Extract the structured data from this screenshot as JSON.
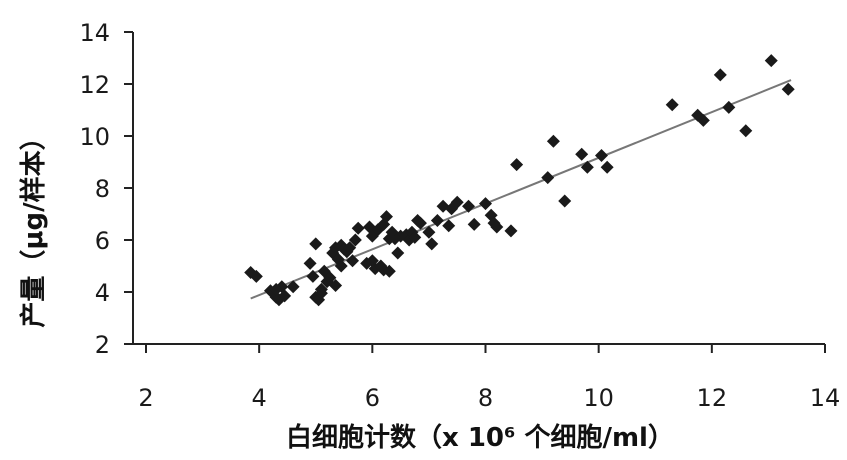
{
  "chart_data": {
    "type": "scatter",
    "title": "",
    "xlabel": "白细胞计数（x 10⁶ 个细胞/ml）",
    "ylabel": "产量（μg/样本）",
    "xlim": [
      2,
      14
    ],
    "ylim": [
      2,
      14
    ],
    "xticks": [
      "2",
      "4",
      "6",
      "8",
      "10",
      "12",
      "14"
    ],
    "yticks": [
      "2",
      "4",
      "6",
      "8",
      "10",
      "12",
      "14"
    ],
    "grid": false,
    "legend": "none",
    "marker_color": "#1a1a1a",
    "trendline_color": "#777777",
    "trendline": {
      "x": [
        3.85,
        13.4
      ],
      "y": [
        3.75,
        12.15
      ]
    },
    "points": [
      {
        "x": 3.85,
        "y": 4.75
      },
      {
        "x": 3.95,
        "y": 4.6
      },
      {
        "x": 4.2,
        "y": 4.05
      },
      {
        "x": 4.3,
        "y": 3.8
      },
      {
        "x": 4.35,
        "y": 3.7
      },
      {
        "x": 4.4,
        "y": 4.2
      },
      {
        "x": 4.45,
        "y": 3.85
      },
      {
        "x": 4.3,
        "y": 4.1
      },
      {
        "x": 4.6,
        "y": 4.2
      },
      {
        "x": 4.9,
        "y": 5.1
      },
      {
        "x": 4.95,
        "y": 4.6
      },
      {
        "x": 5.0,
        "y": 5.85
      },
      {
        "x": 5.0,
        "y": 3.8
      },
      {
        "x": 5.05,
        "y": 3.7
      },
      {
        "x": 5.1,
        "y": 3.95
      },
      {
        "x": 5.1,
        "y": 4.1
      },
      {
        "x": 5.15,
        "y": 4.8
      },
      {
        "x": 5.2,
        "y": 4.4
      },
      {
        "x": 5.25,
        "y": 4.55
      },
      {
        "x": 5.3,
        "y": 5.5
      },
      {
        "x": 5.35,
        "y": 5.7
      },
      {
        "x": 5.35,
        "y": 4.25
      },
      {
        "x": 5.4,
        "y": 5.25
      },
      {
        "x": 5.45,
        "y": 5.0
      },
      {
        "x": 5.45,
        "y": 5.8
      },
      {
        "x": 5.5,
        "y": 5.65
      },
      {
        "x": 5.55,
        "y": 5.55
      },
      {
        "x": 5.6,
        "y": 5.7
      },
      {
        "x": 5.65,
        "y": 5.2
      },
      {
        "x": 5.7,
        "y": 6.0
      },
      {
        "x": 5.75,
        "y": 6.45
      },
      {
        "x": 5.9,
        "y": 5.1
      },
      {
        "x": 5.95,
        "y": 6.5
      },
      {
        "x": 6.0,
        "y": 6.15
      },
      {
        "x": 6.0,
        "y": 5.2
      },
      {
        "x": 6.05,
        "y": 4.9
      },
      {
        "x": 6.1,
        "y": 6.4
      },
      {
        "x": 6.15,
        "y": 5.0
      },
      {
        "x": 6.2,
        "y": 4.85
      },
      {
        "x": 6.2,
        "y": 6.6
      },
      {
        "x": 6.25,
        "y": 6.9
      },
      {
        "x": 6.3,
        "y": 4.8
      },
      {
        "x": 6.3,
        "y": 6.05
      },
      {
        "x": 6.35,
        "y": 6.3
      },
      {
        "x": 6.4,
        "y": 6.05
      },
      {
        "x": 6.45,
        "y": 5.5
      },
      {
        "x": 6.5,
        "y": 6.15
      },
      {
        "x": 6.6,
        "y": 6.2
      },
      {
        "x": 6.65,
        "y": 6.0
      },
      {
        "x": 6.7,
        "y": 6.3
      },
      {
        "x": 6.75,
        "y": 6.1
      },
      {
        "x": 6.8,
        "y": 6.75
      },
      {
        "x": 6.85,
        "y": 6.65
      },
      {
        "x": 7.0,
        "y": 6.3
      },
      {
        "x": 7.05,
        "y": 5.85
      },
      {
        "x": 7.15,
        "y": 6.75
      },
      {
        "x": 7.25,
        "y": 7.3
      },
      {
        "x": 7.35,
        "y": 6.55
      },
      {
        "x": 7.4,
        "y": 7.2
      },
      {
        "x": 7.5,
        "y": 7.45
      },
      {
        "x": 7.7,
        "y": 7.3
      },
      {
        "x": 7.8,
        "y": 6.6
      },
      {
        "x": 8.0,
        "y": 7.4
      },
      {
        "x": 8.1,
        "y": 6.95
      },
      {
        "x": 8.15,
        "y": 6.65
      },
      {
        "x": 8.2,
        "y": 6.5
      },
      {
        "x": 8.45,
        "y": 6.35
      },
      {
        "x": 8.55,
        "y": 8.9
      },
      {
        "x": 9.1,
        "y": 8.4
      },
      {
        "x": 9.2,
        "y": 9.8
      },
      {
        "x": 9.4,
        "y": 7.5
      },
      {
        "x": 9.7,
        "y": 9.3
      },
      {
        "x": 9.8,
        "y": 8.8
      },
      {
        "x": 10.05,
        "y": 9.25
      },
      {
        "x": 10.15,
        "y": 8.8
      },
      {
        "x": 11.3,
        "y": 11.2
      },
      {
        "x": 11.75,
        "y": 10.8
      },
      {
        "x": 11.85,
        "y": 10.6
      },
      {
        "x": 12.15,
        "y": 12.35
      },
      {
        "x": 12.3,
        "y": 11.1
      },
      {
        "x": 12.6,
        "y": 10.2
      },
      {
        "x": 13.05,
        "y": 12.9
      },
      {
        "x": 13.35,
        "y": 11.8
      }
    ]
  }
}
